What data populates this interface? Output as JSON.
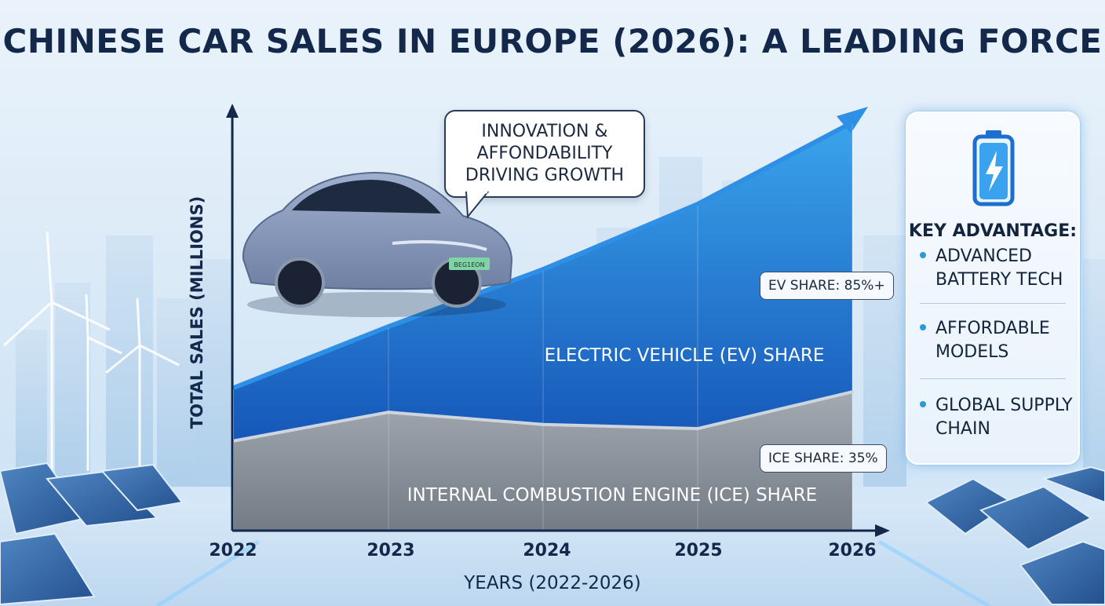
{
  "title": "CHINESE CAR SALES IN EUROPE (2026): A LEADING FORCE",
  "bubble_text": "INNOVATION &\nAFFONDABILITY\nDRIVING GROWTH",
  "car_plate_text": "BEG1EON",
  "callouts": {
    "ev": "EV SHARE: 85%+",
    "ice": "ICE SHARE: 35%"
  },
  "panel": {
    "heading": "KEY ADVANTAGE:",
    "items": [
      "ADVANCED\nBATTERY TECH",
      "AFFORDABLE\nMODELS",
      "GLOBAL SUPPLY\nCHAIN"
    ]
  },
  "colors": {
    "ev_area": "#1f6fd0",
    "ice_area": "#9aa2ab",
    "axis": "#13284a",
    "accent": "#2a9ad6"
  },
  "chart_data": {
    "type": "area",
    "title": "CHINESE CAR SALES IN EUROPE (2026): A LEADING FORCE",
    "xlabel": "YEARS (2022-2026)",
    "ylabel": "TOTAL SALES (MILLIONS)",
    "x": [
      "2022",
      "2023",
      "2024",
      "2025",
      "2026"
    ],
    "ylim": [
      0,
      100
    ],
    "grid": false,
    "series": [
      {
        "name": "INTERNAL COMBUSTION ENGINE (ICE) SHARE",
        "values": [
          22,
          29,
          26,
          25,
          34
        ]
      },
      {
        "name": "ELECTRIC VEHICLE (EV) SHARE",
        "values": [
          35,
          50,
          64,
          80,
          100
        ]
      }
    ]
  }
}
